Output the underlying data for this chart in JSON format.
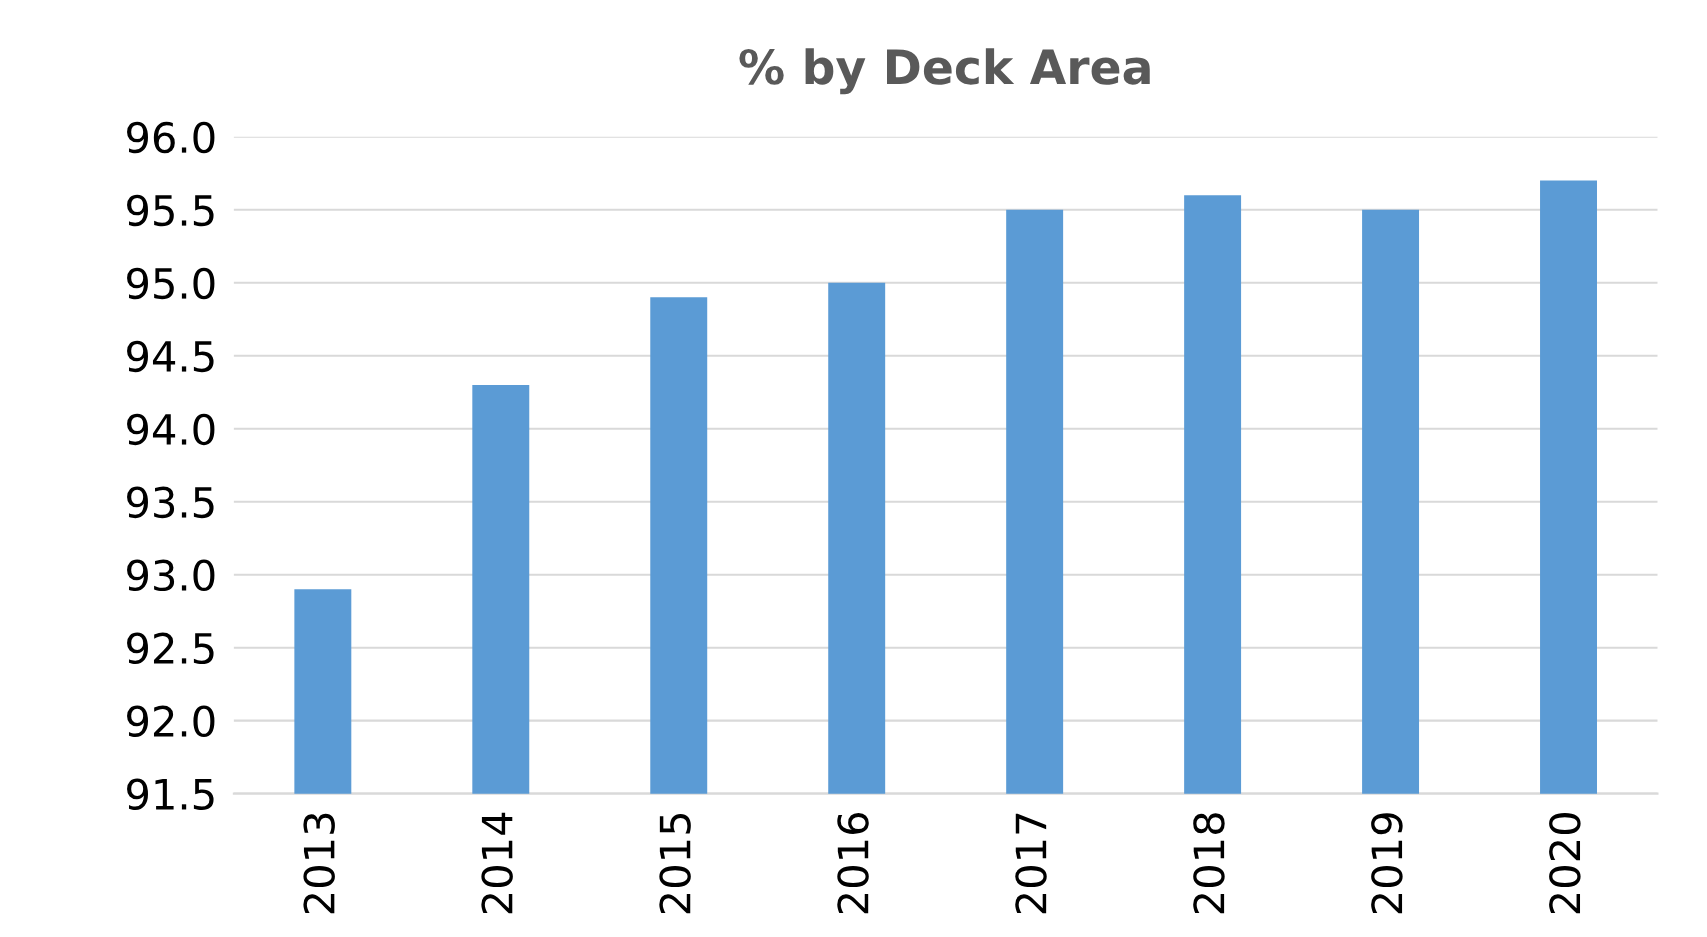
{
  "chart_data": {
    "type": "bar",
    "title": "% by Deck Area",
    "categories": [
      "2013",
      "2014",
      "2015",
      "2016",
      "2017",
      "2018",
      "2019",
      "2020"
    ],
    "values": [
      92.9,
      94.3,
      94.9,
      95.0,
      95.5,
      95.6,
      95.5,
      95.7
    ],
    "color": "#5b9bd5",
    "ylim": [
      91.5,
      96
    ],
    "yticks": [
      {
        "value": 91.5,
        "label": "91.5"
      },
      {
        "value": 92,
        "label": "92.0"
      },
      {
        "value": 92.5,
        "label": "92.5"
      },
      {
        "value": 93,
        "label": "93.0"
      },
      {
        "value": 93.5,
        "label": "93.5"
      },
      {
        "value": 94,
        "label": "94.0"
      },
      {
        "value": 94.5,
        "label": "94.5"
      },
      {
        "value": 95,
        "label": "95.0"
      },
      {
        "value": 95.5,
        "label": "95.5"
      },
      {
        "value": 96,
        "label": "96.0"
      }
    ],
    "grid": "y"
  }
}
